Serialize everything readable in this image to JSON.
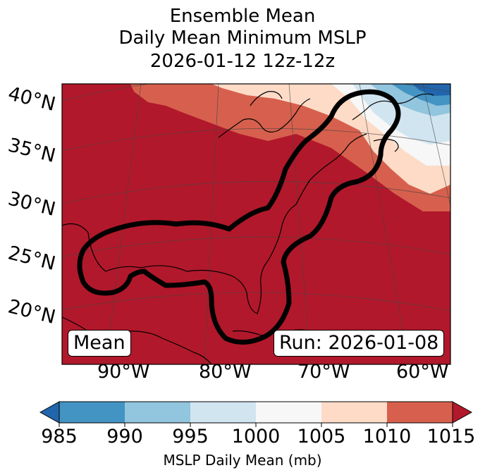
{
  "title": {
    "line1": "Ensemble Mean",
    "line2": "Daily Mean Minimum MSLP",
    "line3": "2026-01-12 12z-12z"
  },
  "map": {
    "lat_labels": [
      "40°N",
      "35°N",
      "30°N",
      "25°N",
      "20°N"
    ],
    "lon_labels": [
      "90°W",
      "80°W",
      "70°W",
      "60°W"
    ],
    "badge_left": "Mean",
    "badge_right": "Run: 2026-01-08",
    "field_colors": {
      "lt985": "#2166ac",
      "985_990": "#4393c3",
      "990_995": "#92c5de",
      "995_1000": "#d1e5f0",
      "1000_1005": "#f7f7f7",
      "1005_1010": "#fddbc7",
      "1010_1015": "#d6604d",
      "gt1015": "#b2182b"
    }
  },
  "colorbar": {
    "ticks": [
      "985",
      "990",
      "995",
      "1000",
      "1005",
      "1010",
      "1015"
    ],
    "label": "MSLP Daily Mean (mb)",
    "colors": [
      "#4393c3",
      "#92c5de",
      "#d1e5f0",
      "#f7f7f7",
      "#fddbc7",
      "#d6604d"
    ],
    "extend_low": "#2166ac",
    "extend_high": "#b2182b"
  }
}
